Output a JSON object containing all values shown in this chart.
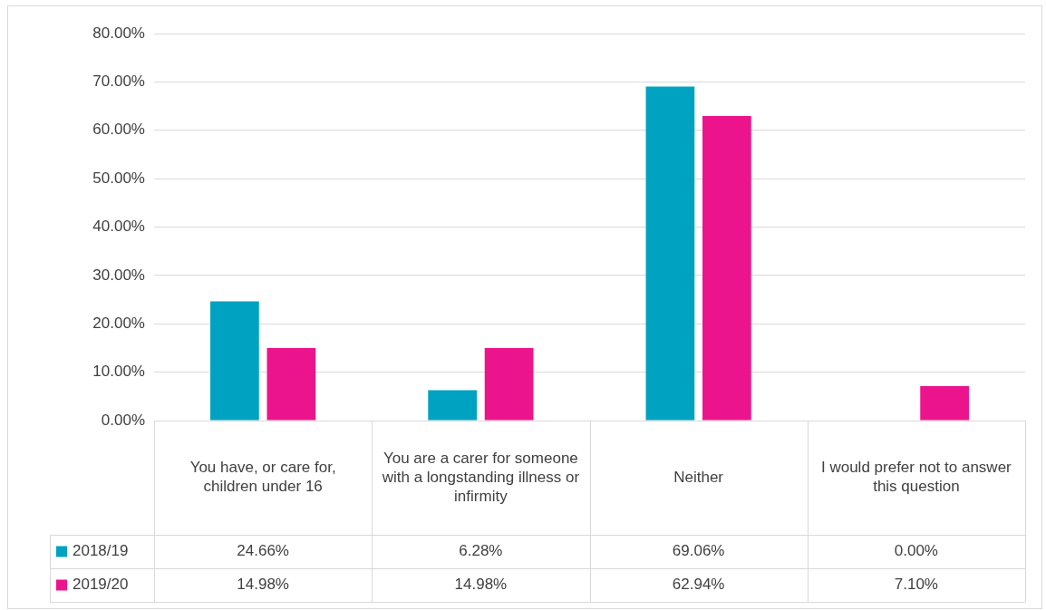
{
  "chart_data": {
    "type": "bar",
    "categories": [
      "You have, or care for, children under 16",
      "You are a carer for someone with a longstanding illness or infirmity",
      "Neither",
      "I would prefer not to answer this question"
    ],
    "series": [
      {
        "name": "2018/19",
        "color": "#00a2c2",
        "values": [
          24.66,
          6.28,
          69.06,
          0.0
        ],
        "value_labels": [
          "24.66%",
          "6.28%",
          "69.06%",
          "0.00%"
        ]
      },
      {
        "name": "2019/20",
        "color": "#ec148c",
        "values": [
          14.98,
          14.98,
          62.94,
          7.1
        ],
        "value_labels": [
          "14.98%",
          "14.98%",
          "62.94%",
          "7.10%"
        ]
      }
    ],
    "ylim": [
      0,
      80
    ],
    "yticks": [
      {
        "value": 0,
        "label": "0.00%"
      },
      {
        "value": 10,
        "label": "10.00%"
      },
      {
        "value": 20,
        "label": "20.00%"
      },
      {
        "value": 30,
        "label": "30.00%"
      },
      {
        "value": 40,
        "label": "40.00%"
      },
      {
        "value": 50,
        "label": "50.00%"
      },
      {
        "value": 60,
        "label": "60.00%"
      },
      {
        "value": 70,
        "label": "70.00%"
      },
      {
        "value": 80,
        "label": "80.00%"
      }
    ],
    "grid": "y",
    "legend": "bottom"
  }
}
